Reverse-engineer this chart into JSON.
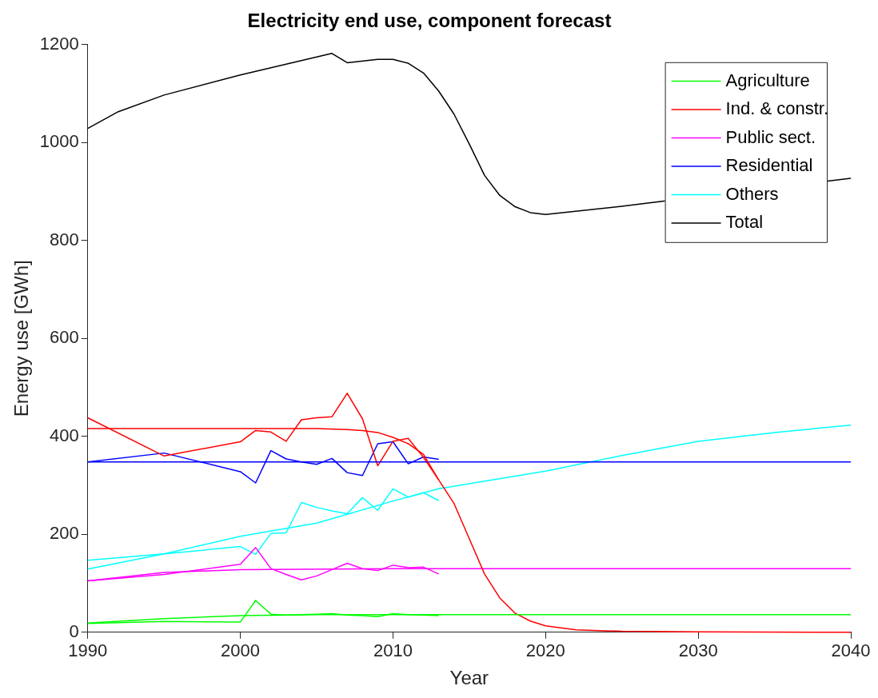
{
  "chart_data": {
    "type": "line",
    "title": "Electricity end use, component forecast",
    "xlabel": "Year",
    "ylabel": "Energy use [GWh]",
    "xlim": [
      1990,
      2040
    ],
    "xticks": [
      1990,
      2000,
      2010,
      2020,
      2030,
      2040
    ],
    "ylim": [
      0,
      1200
    ],
    "yticks": [
      0,
      200,
      400,
      600,
      800,
      1000,
      1200
    ],
    "grid": false,
    "legend": "top right",
    "marker": "none",
    "line_style": "solid",
    "series": [
      {
        "name": "Agriculture",
        "color": "#00ff00",
        "x": [
          1990,
          1995,
          2000,
          2005,
          2010,
          2020,
          2030,
          2040
        ],
        "values": [
          19,
          28,
          34,
          36,
          36,
          36,
          36,
          36
        ]
      },
      {
        "name": "Ind. & constr.",
        "color": "#ff0000",
        "x": [
          1990,
          2000,
          2005,
          2007,
          2008,
          2009,
          2010,
          2011,
          2012,
          2013,
          2014,
          2015,
          2016,
          2017,
          2018,
          2019,
          2020,
          2022,
          2025,
          2030,
          2040
        ],
        "values": [
          416,
          416,
          416,
          414,
          412,
          408,
          398,
          385,
          363,
          311,
          263,
          191,
          119,
          70,
          39,
          23,
          13,
          5,
          2,
          1,
          0
        ]
      },
      {
        "name": "Public sect.",
        "color": "#ff00ff",
        "x": [
          1990,
          1995,
          2000,
          2010,
          2020,
          2030,
          2040
        ],
        "values": [
          105,
          122,
          128,
          130,
          130,
          130,
          130
        ]
      },
      {
        "name": "Residential",
        "color": "#0000ff",
        "x": [
          1990,
          2000,
          2010,
          2020,
          2030,
          2040
        ],
        "values": [
          348,
          348,
          348,
          348,
          348,
          348
        ]
      },
      {
        "name": "Others",
        "color": "#00ffff",
        "x": [
          1990,
          1995,
          2000,
          2005,
          2010,
          2013,
          2020,
          2025,
          2030,
          2035,
          2040
        ],
        "values": [
          129,
          160,
          196,
          223,
          268,
          293,
          329,
          361,
          390,
          408,
          423
        ]
      },
      {
        "name": "Total",
        "color": "#000000",
        "x": [
          1990,
          1992,
          1995,
          2000,
          2003,
          2006,
          2007,
          2009,
          2010,
          2011,
          2012,
          2013,
          2014,
          2015,
          2016,
          2017,
          2018,
          2019,
          2020,
          2025,
          2040
        ],
        "values": [
          1029,
          1063,
          1097,
          1138,
          1160,
          1182,
          1163,
          1170,
          1170,
          1162,
          1142,
          1105,
          1058,
          997,
          933,
          892,
          869,
          857,
          853,
          870,
          927
        ]
      },
      {
        "color": "#00ff00",
        "x": [
          1990,
          1995,
          2000,
          2001,
          2002,
          2003,
          2004,
          2005,
          2006,
          2007,
          2008,
          2009,
          2010,
          2011,
          2012,
          2013
        ],
        "values": [
          18,
          22,
          21,
          65,
          37,
          35,
          36,
          37,
          38,
          35,
          34,
          32,
          38,
          36,
          35,
          34
        ]
      },
      {
        "color": "#ff0000",
        "x": [
          1990,
          1995,
          2000,
          2001,
          2002,
          2003,
          2004,
          2005,
          2006,
          2007,
          2008,
          2009,
          2010,
          2011,
          2012,
          2013
        ],
        "values": [
          438,
          360,
          389,
          412,
          409,
          390,
          434,
          438,
          440,
          488,
          436,
          340,
          390,
          396,
          357,
          311
        ]
      },
      {
        "color": "#ff00ff",
        "x": [
          1990,
          1995,
          2000,
          2001,
          2002,
          2003,
          2004,
          2005,
          2006,
          2007,
          2008,
          2009,
          2010,
          2011,
          2012,
          2013
        ],
        "values": [
          105,
          118,
          139,
          173,
          130,
          118,
          107,
          115,
          128,
          141,
          130,
          126,
          137,
          132,
          133,
          119
        ]
      },
      {
        "color": "#0000ff",
        "x": [
          1990,
          1995,
          2000,
          2001,
          2002,
          2003,
          2004,
          2005,
          2006,
          2007,
          2008,
          2009,
          2010,
          2011,
          2012,
          2013
        ],
        "values": [
          348,
          366,
          328,
          305,
          371,
          354,
          348,
          343,
          355,
          326,
          320,
          385,
          389,
          344,
          358,
          353
        ]
      },
      {
        "color": "#00ffff",
        "x": [
          1990,
          1995,
          2000,
          2001,
          2002,
          2003,
          2004,
          2005,
          2006,
          2007,
          2008,
          2009,
          2010,
          2011,
          2012,
          2013
        ],
        "values": [
          147,
          160,
          175,
          159,
          202,
          203,
          265,
          255,
          248,
          242,
          275,
          249,
          293,
          276,
          285,
          269
        ]
      }
    ]
  }
}
